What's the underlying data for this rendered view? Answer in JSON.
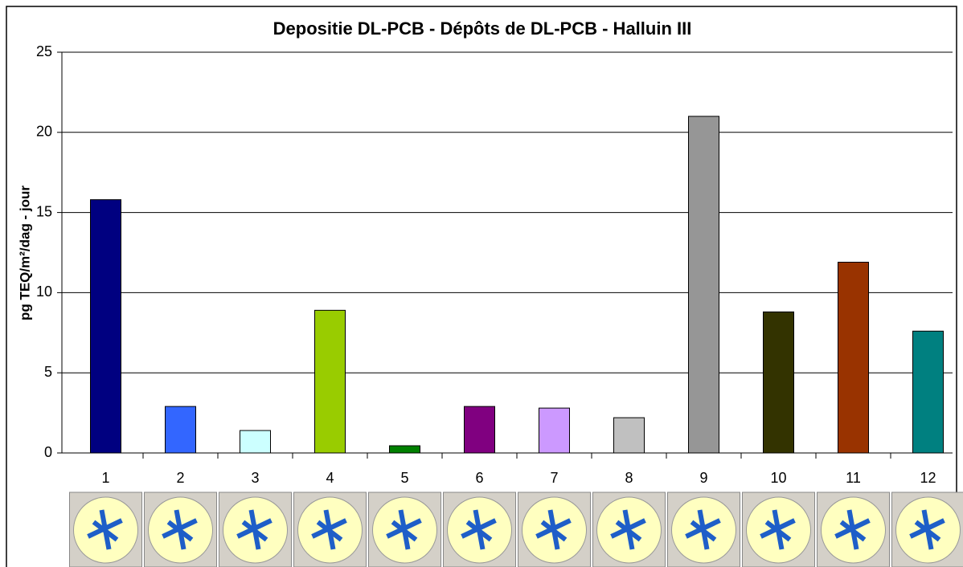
{
  "chart_data": {
    "type": "bar",
    "title": "Depositie DL-PCB - Dépôts de DL-PCB - Halluin III",
    "y_label": "pg TEQ/m²/dag - jour",
    "categories": [
      "1",
      "2",
      "3",
      "4",
      "5",
      "6",
      "7",
      "8",
      "9",
      "10",
      "11",
      "12"
    ],
    "values": [
      15.8,
      2.9,
      1.4,
      8.9,
      0.45,
      2.9,
      2.8,
      2.2,
      21.0,
      8.8,
      11.9,
      7.6
    ],
    "colors": [
      "#000080",
      "#3366ff",
      "#ccffff",
      "#99cc00",
      "#008000",
      "#800080",
      "#cc99ff",
      "#c0c0c0",
      "#969696",
      "#333300",
      "#993300",
      "#008080"
    ],
    "ylim": [
      0,
      25
    ],
    "yticks": [
      0,
      5,
      10,
      15,
      20,
      25
    ],
    "grid": true
  }
}
